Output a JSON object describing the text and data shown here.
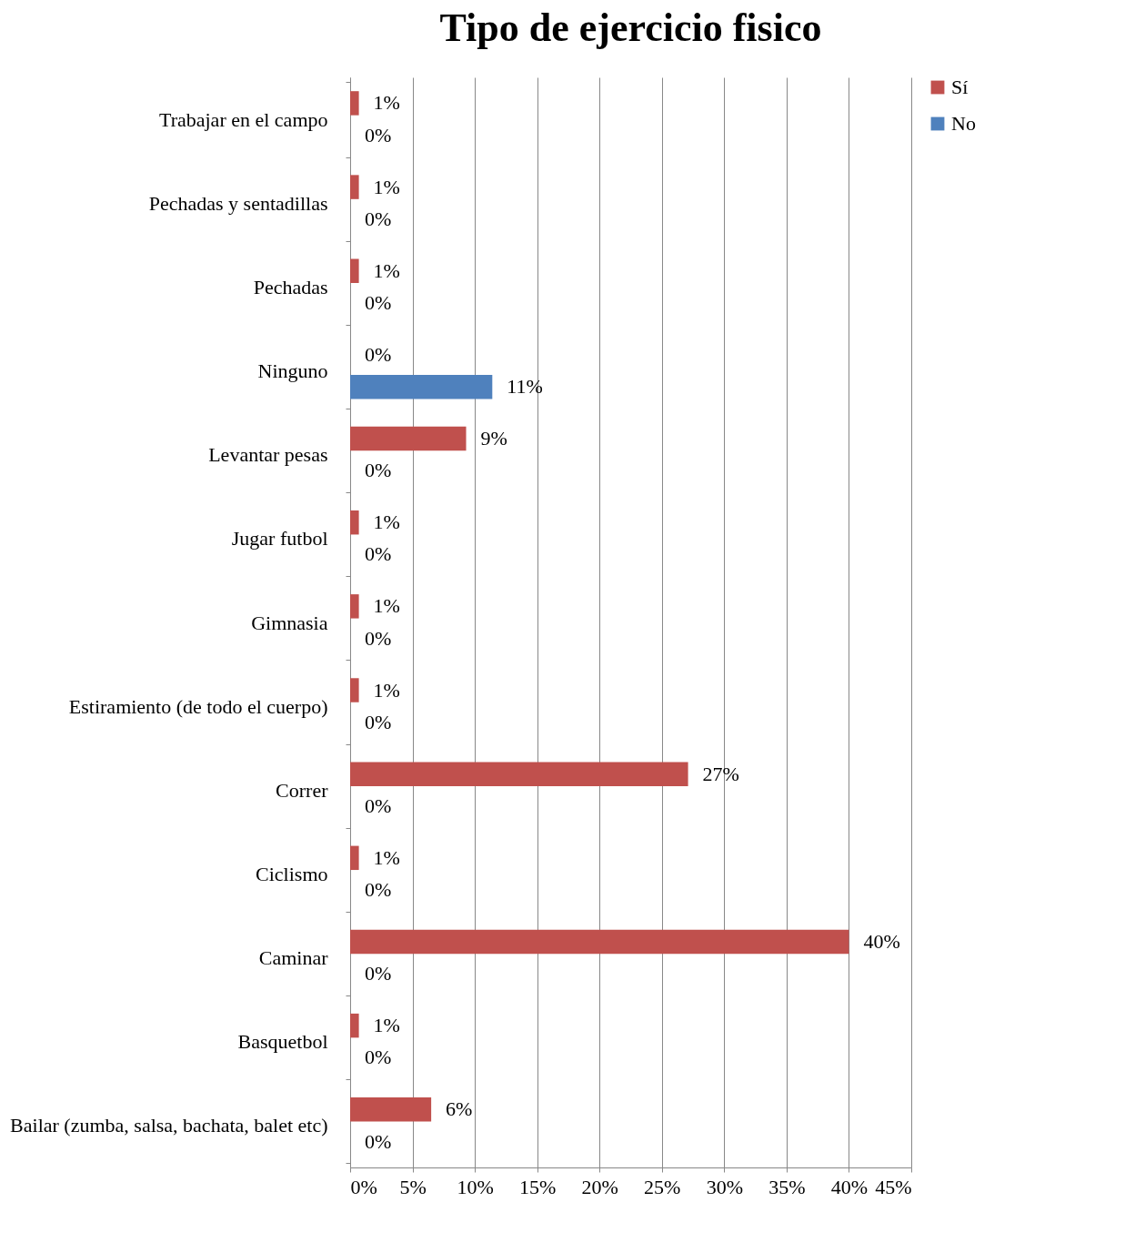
{
  "chart_data": {
    "type": "bar",
    "orientation": "horizontal",
    "title": "Tipo de ejercicio fisico",
    "categories": [
      "Trabajar en el campo",
      "Pechadas y sentadillas",
      "Pechadas",
      "Ninguno",
      "Levantar pesas",
      "Jugar futbol",
      "Gimnasia",
      "Estiramiento (de todo el cuerpo)",
      "Correr",
      "Ciclismo",
      "Caminar",
      "Basquetbol",
      "Bailar (zumba, salsa, bachata, balet etc)"
    ],
    "series": [
      {
        "name": "Sí",
        "color": "#c0504d",
        "values": [
          0.7,
          0.7,
          0.7,
          0,
          9.3,
          0.7,
          0.7,
          0.7,
          27.1,
          0.7,
          40,
          0.7,
          6.5
        ],
        "value_labels": [
          "1%",
          "1%",
          "1%",
          "0%",
          "9%",
          "1%",
          "1%",
          "1%",
          "27%",
          "1%",
          "40%",
          "1%",
          "6%"
        ]
      },
      {
        "name": "No",
        "color": "#4f81bd",
        "values": [
          0,
          0,
          0,
          11.4,
          0,
          0,
          0,
          0,
          0,
          0,
          0,
          0,
          0
        ],
        "value_labels": [
          "0%",
          "0%",
          "0%",
          "11%",
          "0%",
          "0%",
          "0%",
          "0%",
          "0%",
          "0%",
          "0%",
          "0%",
          "0%"
        ]
      }
    ],
    "xlim": [
      0,
      45
    ],
    "xticks": [
      {
        "value": 0,
        "label": "0%"
      },
      {
        "value": 5,
        "label": "5%"
      },
      {
        "value": 10,
        "label": "10%"
      },
      {
        "value": 15,
        "label": "15%"
      },
      {
        "value": 20,
        "label": "20%"
      },
      {
        "value": 25,
        "label": "25%"
      },
      {
        "value": 30,
        "label": "30%"
      },
      {
        "value": 35,
        "label": "35%"
      },
      {
        "value": 40,
        "label": "40%"
      },
      {
        "value": 45,
        "label": "45%"
      }
    ],
    "grid": "x",
    "legend": "right"
  }
}
